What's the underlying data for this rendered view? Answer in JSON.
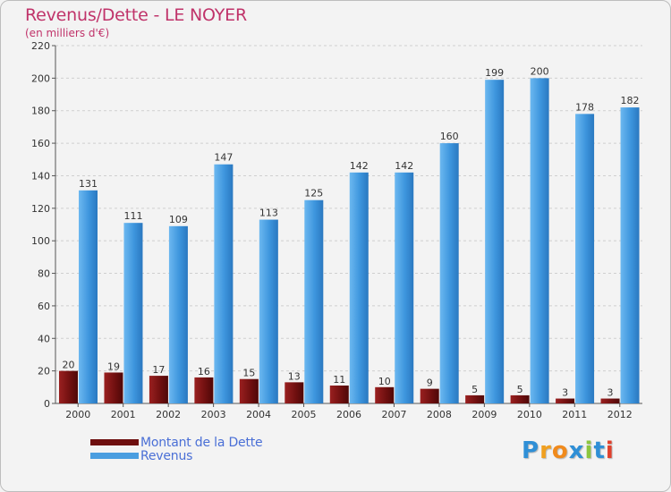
{
  "header": {
    "title": "Revenus/Dette - LE NOYER",
    "subtitle": "(en milliers d'€)"
  },
  "chart_data": {
    "type": "bar",
    "title": "Revenus/Dette - LE NOYER",
    "subtitle": "(en milliers d'€)",
    "categories": [
      "2000",
      "2001",
      "2002",
      "2003",
      "2004",
      "2005",
      "2006",
      "2007",
      "2008",
      "2009",
      "2010",
      "2011",
      "2012"
    ],
    "series": [
      {
        "name": "Montant de la Dette",
        "color": "#7a1212",
        "values": [
          20,
          19,
          17,
          16,
          15,
          13,
          11,
          10,
          9,
          5,
          5,
          3,
          3
        ]
      },
      {
        "name": "Revenus",
        "color": "#4a9ee0",
        "values": [
          131,
          111,
          109,
          147,
          113,
          125,
          142,
          142,
          160,
          199,
          200,
          178,
          182
        ]
      }
    ],
    "ylim": [
      0,
      220
    ],
    "yticks": [
      0,
      20,
      40,
      60,
      80,
      100,
      120,
      140,
      160,
      180,
      200,
      220
    ],
    "grid": true,
    "legend_position": "bottom-left"
  },
  "legend": {
    "items": [
      {
        "label": "Montant de la Dette",
        "color": "#6e0f0f"
      },
      {
        "label": "Revenus",
        "color": "#4a9ee0"
      }
    ]
  },
  "brand": {
    "letters": [
      {
        "ch": "P",
        "color": "#2f8fd6"
      },
      {
        "ch": "r",
        "color": "#f0a020"
      },
      {
        "ch": "o",
        "color": "#f08a1c"
      },
      {
        "ch": "x",
        "color": "#2f8fd6"
      },
      {
        "ch": "i",
        "color": "#8cc63f"
      },
      {
        "ch": "t",
        "color": "#2f8fd6"
      },
      {
        "ch": "i",
        "color": "#e0402c"
      }
    ]
  }
}
